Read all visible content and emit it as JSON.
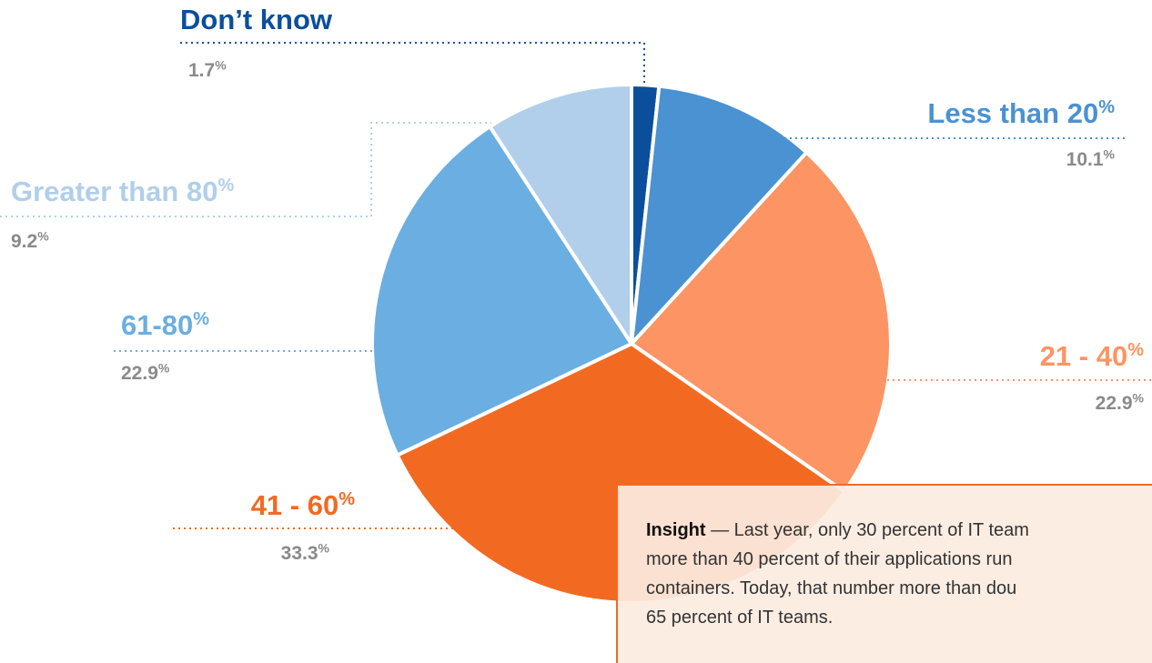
{
  "chart_data": {
    "type": "pie",
    "categories": [
      "Don’t know",
      "Less than 20%",
      "21 - 40%",
      "41 - 60%",
      "61-80%",
      "Greater than 80%"
    ],
    "values": [
      1.7,
      10.1,
      22.9,
      33.3,
      22.9,
      9.2
    ],
    "value_labels": [
      "1.7%",
      "10.1%",
      "22.9%",
      "33.3%",
      "22.9%",
      "9.2%"
    ],
    "colors": [
      "#0b4f9c",
      "#4a92d2",
      "#fd9463",
      "#f26a22",
      "#6baee1",
      "#b1cfea"
    ],
    "annotation": {
      "label": "Insight",
      "lines": [
        "— Last year, only 30 percent of IT team",
        "more than 40 percent of their applications run",
        "containers. Today, that number more than dou",
        "65 percent of IT teams."
      ]
    }
  }
}
